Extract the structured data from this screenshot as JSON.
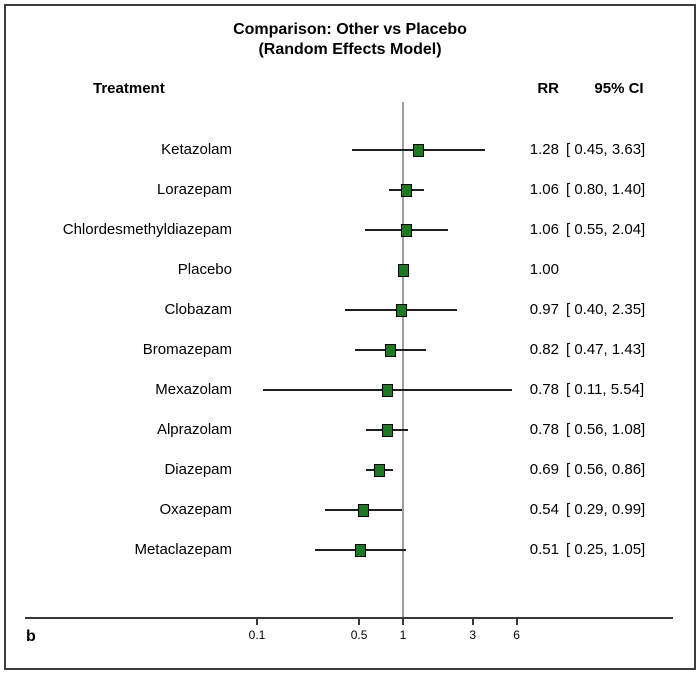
{
  "title": {
    "line1": "Comparison: Other vs Placebo",
    "line2": "(Random Effects Model)"
  },
  "header": {
    "treatment": "Treatment",
    "rr": "RR",
    "ci": "95% CI"
  },
  "panel_label": "b",
  "colors": {
    "background": "#ffffff",
    "border": "#3d3d3d",
    "text": "#000000",
    "square_fill": "#1b7a21",
    "square_border": "#000000",
    "ci_line": "#1f1f1f",
    "reference_line": "#9e9e9e",
    "axis_line": "#383838"
  },
  "chart_data": {
    "type": "forest",
    "title": "Comparison: Other vs Placebo (Random Effects Model)",
    "effect_measure": "RR",
    "x_scale": "log10",
    "ref_line_value": 1,
    "x_ticks": [
      {
        "label": "0.1",
        "value": 0.1
      },
      {
        "label": "0.5",
        "value": 0.5
      },
      {
        "label": "1",
        "value": 1
      },
      {
        "label": "3",
        "value": 3
      },
      {
        "label": "6",
        "value": 6
      }
    ],
    "rows": [
      {
        "label": "Ketazolam",
        "rr": 1.28,
        "ci_low": 0.45,
        "ci_high": 3.63,
        "rr_text": "1.28",
        "ci_text": "[ 0.45, 3.63]"
      },
      {
        "label": "Lorazepam",
        "rr": 1.06,
        "ci_low": 0.8,
        "ci_high": 1.4,
        "rr_text": "1.06",
        "ci_text": "[ 0.80, 1.40]"
      },
      {
        "label": "Chlordesmethyldiazepam",
        "rr": 1.06,
        "ci_low": 0.55,
        "ci_high": 2.04,
        "rr_text": "1.06",
        "ci_text": "[ 0.55, 2.04]"
      },
      {
        "label": "Placebo",
        "rr": 1.0,
        "ci_low": null,
        "ci_high": null,
        "rr_text": "1.00",
        "ci_text": ""
      },
      {
        "label": "Clobazam",
        "rr": 0.97,
        "ci_low": 0.4,
        "ci_high": 2.35,
        "rr_text": "0.97",
        "ci_text": "[ 0.40, 2.35]"
      },
      {
        "label": "Bromazepam",
        "rr": 0.82,
        "ci_low": 0.47,
        "ci_high": 1.43,
        "rr_text": "0.82",
        "ci_text": "[ 0.47, 1.43]"
      },
      {
        "label": "Mexazolam",
        "rr": 0.78,
        "ci_low": 0.11,
        "ci_high": 5.54,
        "rr_text": "0.78",
        "ci_text": "[ 0.11, 5.54]"
      },
      {
        "label": "Alprazolam",
        "rr": 0.78,
        "ci_low": 0.56,
        "ci_high": 1.08,
        "rr_text": "0.78",
        "ci_text": "[ 0.56, 1.08]"
      },
      {
        "label": "Diazepam",
        "rr": 0.69,
        "ci_low": 0.56,
        "ci_high": 0.86,
        "rr_text": "0.69",
        "ci_text": "[ 0.56, 0.86]"
      },
      {
        "label": "Oxazepam",
        "rr": 0.54,
        "ci_low": 0.29,
        "ci_high": 0.99,
        "rr_text": "0.54",
        "ci_text": "[ 0.29, 0.99]"
      },
      {
        "label": "Metaclazepam",
        "rr": 0.51,
        "ci_low": 0.25,
        "ci_high": 1.05,
        "rr_text": "0.51",
        "ci_text": "[ 0.25, 1.05]"
      }
    ]
  }
}
